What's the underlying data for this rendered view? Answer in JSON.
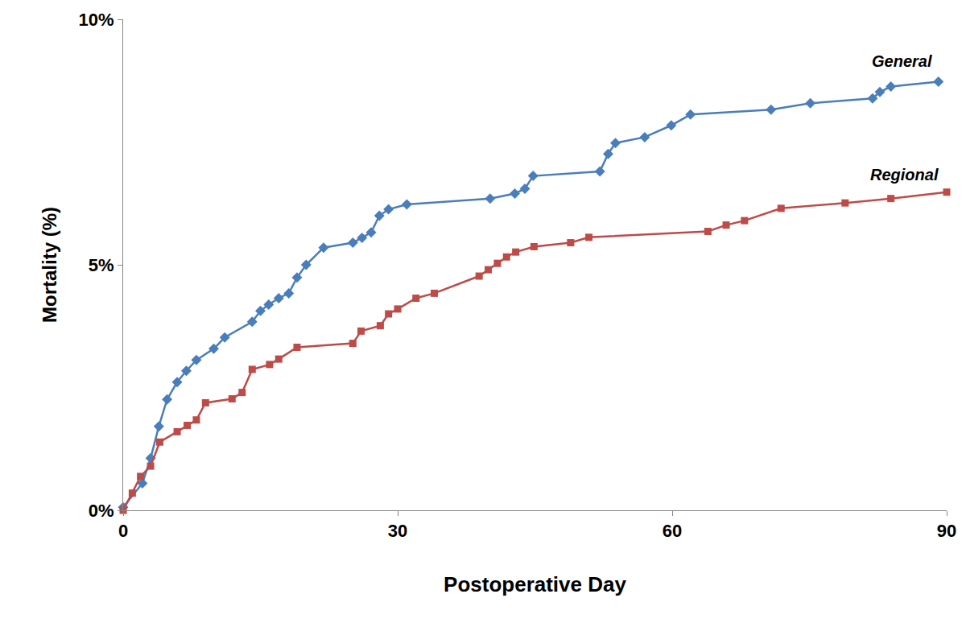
{
  "chart_data": {
    "type": "line",
    "x_label": "Postoperative Day",
    "y_label": "Mortality (%)",
    "xlim": [
      0,
      90
    ],
    "xticks": [
      0,
      30,
      60,
      90
    ],
    "ylim": [
      0,
      10
    ],
    "yticks": [
      {
        "value": 0,
        "label": "0%"
      },
      {
        "value": 5,
        "label": "5%"
      },
      {
        "value": 10,
        "label": "10%"
      }
    ],
    "grid": false,
    "series": [
      {
        "name": "General",
        "color": "#4a7ebb",
        "marker": "diamond",
        "x": [
          0,
          2.1,
          3.0,
          3.9,
          4.8,
          5.9,
          6.9,
          8.0,
          9.9,
          11.1,
          14.1,
          15.0,
          15.9,
          17.0,
          18.1,
          19.0,
          20.0,
          21.9,
          25.1,
          26.1,
          27.1,
          28.0,
          29.0,
          31.0,
          40.1,
          42.8,
          43.9,
          44.8,
          52.1,
          53.0,
          53.8,
          57.0,
          59.9,
          62.0,
          70.8,
          75.1,
          81.9,
          82.7,
          83.9,
          89.1
        ],
        "values": [
          0.06,
          0.55,
          1.06,
          1.71,
          2.26,
          2.61,
          2.84,
          3.06,
          3.29,
          3.52,
          3.84,
          4.06,
          4.19,
          4.32,
          4.42,
          4.74,
          5.0,
          5.35,
          5.45,
          5.55,
          5.66,
          6.0,
          6.13,
          6.23,
          6.35,
          6.45,
          6.55,
          6.81,
          6.9,
          7.26,
          7.48,
          7.6,
          7.84,
          8.06,
          8.16,
          8.29,
          8.39,
          8.52,
          8.63,
          8.73
        ]
      },
      {
        "name": "Regional",
        "color": "#be4b48",
        "marker": "square",
        "x": [
          0,
          1.0,
          1.9,
          3.0,
          4.0,
          5.9,
          7.0,
          8.0,
          9.0,
          11.9,
          13.0,
          14.1,
          16.0,
          17.0,
          19.0,
          25.1,
          26.0,
          28.1,
          29.0,
          30.0,
          32.0,
          34.0,
          38.9,
          39.9,
          40.9,
          41.9,
          42.9,
          44.9,
          48.9,
          50.9,
          63.9,
          65.9,
          67.9,
          71.9,
          78.9,
          83.9,
          90.0
        ],
        "values": [
          0,
          0.35,
          0.69,
          0.9,
          1.39,
          1.6,
          1.73,
          1.84,
          2.19,
          2.27,
          2.4,
          2.87,
          2.97,
          3.08,
          3.32,
          3.4,
          3.65,
          3.76,
          4.0,
          4.1,
          4.32,
          4.42,
          4.77,
          4.9,
          5.03,
          5.16,
          5.26,
          5.37,
          5.45,
          5.56,
          5.68,
          5.81,
          5.9,
          6.15,
          6.26,
          6.35,
          6.48
        ]
      }
    ]
  }
}
